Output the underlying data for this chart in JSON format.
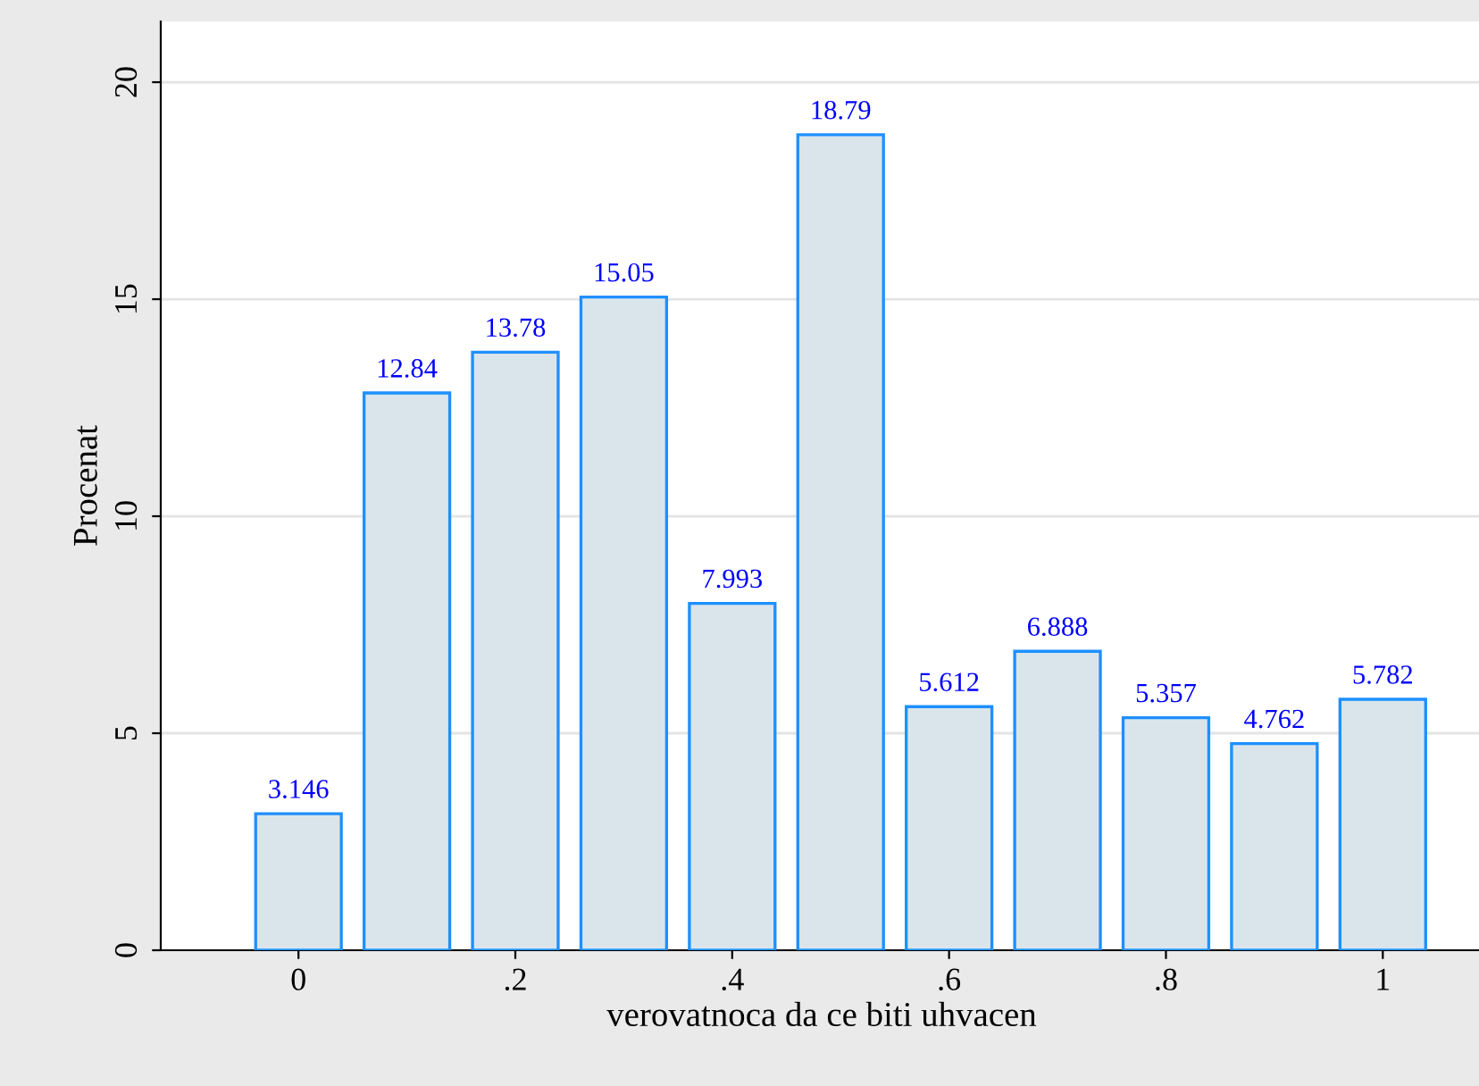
{
  "chart_data": {
    "type": "bar",
    "xlabel": "verovatnoca da ce biti uhvacen",
    "ylabel": "Procenat",
    "x": [
      0,
      0.1,
      0.2,
      0.3,
      0.4,
      0.5,
      0.6,
      0.7,
      0.8,
      0.9,
      1
    ],
    "values": [
      3.146,
      12.84,
      13.78,
      15.05,
      7.993,
      18.79,
      5.612,
      6.888,
      5.357,
      4.762,
      5.782
    ],
    "color": "#dae5eb",
    "data_labels": true,
    "xlim": [
      -0.127,
      1.092
    ],
    "xticks": [
      0,
      {
        "value": 0.2,
        "label": ".2"
      },
      {
        "value": 0.4,
        "label": ".4"
      },
      {
        "value": 0.6,
        "label": ".6"
      },
      {
        "value": 0.8,
        "label": ".8"
      },
      1
    ],
    "ylim": [
      0,
      21.4
    ],
    "yticks": [
      0,
      5,
      10,
      15,
      20
    ],
    "grid": "y"
  }
}
